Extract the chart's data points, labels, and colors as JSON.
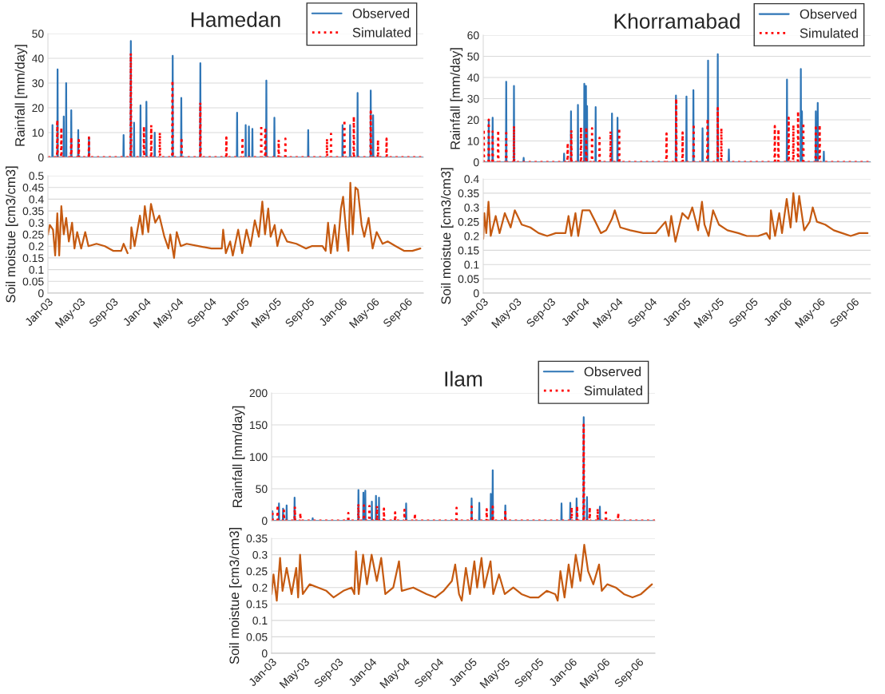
{
  "chart_data": [
    {
      "type": "line",
      "title": "Hamedan",
      "ylabel": "Rainfall [mm/day]",
      "xlim": [
        "2003-01-01",
        "2006-10-31"
      ],
      "ylim": [
        0,
        50
      ],
      "yticks": [
        0,
        10,
        20,
        30,
        40,
        50
      ],
      "grid": "y",
      "legend": "top right",
      "tick_labels": "y",
      "series": [
        {
          "name": "Observed",
          "color": "#2e75b6",
          "line_style": "solid",
          "x": [
            "2003-01-01",
            "2003-01-17",
            "2003-01-18",
            "2003-01-19",
            "2003-02-05",
            "2003-02-06",
            "2003-02-07",
            "2003-02-28",
            "2003-03-01",
            "2003-03-02",
            "2003-03-09",
            "2003-03-10",
            "2003-03-11",
            "2003-03-28",
            "2003-03-29",
            "2003-03-30",
            "2003-04-23",
            "2003-04-24",
            "2003-04-25",
            "2003-06-02",
            "2003-06-03",
            "2003-06-04",
            "2003-10-09",
            "2003-10-10",
            "2003-10-11",
            "2003-11-05",
            "2003-11-06",
            "2003-11-07",
            "2003-11-17",
            "2003-11-18",
            "2003-11-19",
            "2003-12-11",
            "2003-12-12",
            "2003-12-13",
            "2004-01-02",
            "2004-01-03",
            "2004-01-04",
            "2004-02-02",
            "2004-02-03",
            "2004-02-04",
            "2004-04-09",
            "2004-04-10",
            "2004-04-11",
            "2004-05-11",
            "2004-05-12",
            "2004-05-13",
            "2004-07-21",
            "2004-07-22",
            "2004-07-23",
            "2004-12-05",
            "2004-12-06",
            "2004-12-07",
            "2005-01-06",
            "2005-01-07",
            "2005-01-08",
            "2005-01-18",
            "2005-01-19",
            "2005-01-20",
            "2005-01-31",
            "2005-02-01",
            "2005-02-02",
            "2005-03-24",
            "2005-03-25",
            "2005-03-26",
            "2005-04-23",
            "2005-04-24",
            "2005-04-25",
            "2005-08-27",
            "2005-08-28",
            "2005-08-29",
            "2006-01-02",
            "2006-01-03",
            "2006-01-04",
            "2006-01-30",
            "2006-01-31",
            "2006-02-01",
            "2006-02-27",
            "2006-02-28",
            "2006-03-01",
            "2006-04-17",
            "2006-04-18",
            "2006-04-19",
            "2006-04-26",
            "2006-04-27",
            "2006-04-28",
            "2006-10-31"
          ],
          "values": [
            0,
            0,
            13,
            0,
            0,
            35.5,
            0,
            0,
            16.5,
            0,
            0,
            30,
            0,
            0,
            19,
            0,
            0,
            11,
            0,
            0,
            8,
            0,
            0,
            9,
            0,
            0,
            47,
            0,
            0,
            14,
            0,
            0,
            21,
            0,
            0,
            22.5,
            0,
            0,
            10,
            0,
            0,
            41,
            0,
            0,
            24,
            0,
            0,
            38,
            0,
            0,
            18,
            0,
            0,
            13,
            0,
            0,
            12.5,
            0,
            0,
            11.5,
            0,
            0,
            31,
            0,
            0,
            16,
            0,
            0,
            11,
            0,
            0,
            13,
            0,
            0,
            13,
            0,
            0,
            26,
            0,
            0,
            27,
            0,
            0,
            17,
            0,
            0
          ]
        },
        {
          "name": "Simulated",
          "color": "#ff0000",
          "line_style": "dotted",
          "x": [
            "2003-01-01",
            "2003-02-04",
            "2003-02-05",
            "2003-02-06",
            "2003-02-19",
            "2003-02-20",
            "2003-02-21",
            "2003-03-28",
            "2003-03-29",
            "2003-03-30",
            "2003-04-25",
            "2003-04-26",
            "2003-04-27",
            "2003-06-02",
            "2003-06-03",
            "2003-06-04",
            "2003-11-05",
            "2003-11-06",
            "2003-11-07",
            "2003-12-24",
            "2003-12-25",
            "2003-12-26",
            "2004-01-20",
            "2004-01-21",
            "2004-01-22",
            "2004-02-21",
            "2004-02-22",
            "2004-02-23",
            "2004-04-08",
            "2004-04-09",
            "2004-04-10",
            "2004-05-12",
            "2004-05-13",
            "2004-05-14",
            "2004-07-21",
            "2004-07-22",
            "2004-07-23",
            "2004-10-26",
            "2004-10-27",
            "2004-10-28",
            "2004-12-25",
            "2004-12-26",
            "2004-12-27",
            "2005-03-05",
            "2005-03-06",
            "2005-03-07",
            "2005-03-20",
            "2005-03-21",
            "2005-03-22",
            "2005-05-09",
            "2005-05-10",
            "2005-05-11",
            "2005-06-03",
            "2005-06-04",
            "2005-06-05",
            "2005-11-05",
            "2005-11-06",
            "2005-11-07",
            "2005-11-20",
            "2005-11-21",
            "2005-11-22",
            "2006-01-09",
            "2006-01-10",
            "2006-01-11",
            "2006-02-13",
            "2006-02-14",
            "2006-02-15",
            "2006-04-17",
            "2006-04-18",
            "2006-04-19",
            "2006-05-14",
            "2006-05-15",
            "2006-05-16",
            "2006-06-15",
            "2006-06-16",
            "2006-06-17",
            "2006-10-31"
          ],
          "values": [
            0,
            0,
            15,
            0,
            0,
            12,
            0,
            0,
            8,
            0,
            0,
            7,
            0,
            0,
            8,
            0,
            0,
            42,
            0,
            0,
            12.5,
            0,
            0,
            13,
            0,
            0,
            10,
            0,
            0,
            31,
            0,
            0,
            8,
            0,
            0,
            22,
            0,
            0,
            8,
            0,
            0,
            8,
            0,
            0,
            13,
            0,
            0,
            12,
            0,
            0,
            7,
            0,
            0,
            7.5,
            0,
            0,
            7.5,
            0,
            0,
            9.5,
            0,
            0,
            15,
            0,
            0,
            16.5,
            0,
            0,
            18.5,
            0,
            0,
            7,
            0,
            0,
            7.5,
            0,
            0
          ]
        }
      ]
    },
    {
      "type": "line",
      "ylabel": "Soil moistue [cm3/cm3]",
      "xlim": [
        "2003-01-01",
        "2006-10-31"
      ],
      "xticks": [
        {
          "value": "2003-01-01",
          "label": "Jan-03"
        },
        {
          "value": "2003-05-01",
          "label": "May-03"
        },
        {
          "value": "2003-09-01",
          "label": "Sep-03"
        },
        {
          "value": "2004-01-01",
          "label": "Jan-04"
        },
        {
          "value": "2004-05-01",
          "label": "May-04"
        },
        {
          "value": "2004-09-01",
          "label": "Sep-04"
        },
        {
          "value": "2005-01-01",
          "label": "Jan-05"
        },
        {
          "value": "2005-05-01",
          "label": "May-05"
        },
        {
          "value": "2005-09-01",
          "label": "Sep-05"
        },
        {
          "value": "2006-01-01",
          "label": "Jan-06"
        },
        {
          "value": "2006-05-01",
          "label": "May-06"
        },
        {
          "value": "2006-09-01",
          "label": "Sep-06"
        }
      ],
      "ylim": [
        0,
        0.5
      ],
      "yticks": [
        0,
        0.05,
        0.1,
        0.15,
        0.2,
        0.25,
        0.3,
        0.35,
        0.4,
        0.45,
        0.5
      ],
      "grid": "y",
      "series": [
        {
          "color": "#c55a11",
          "line_style": "solid",
          "x": [
            "2003-01-01",
            "2003-01-08",
            "2003-01-20",
            "2003-01-28",
            "2003-02-05",
            "2003-02-12",
            "2003-02-20",
            "2003-03-01",
            "2003-03-10",
            "2003-03-20",
            "2003-04-01",
            "2003-04-10",
            "2003-04-20",
            "2003-05-05",
            "2003-05-20",
            "2003-06-01",
            "2003-07-01",
            "2003-08-01",
            "2003-09-01",
            "2003-10-01",
            "2003-10-10",
            "2003-10-25",
            "2003-11-01",
            "2003-11-05",
            "2003-11-08",
            "2003-11-20",
            "2003-12-10",
            "2003-12-20",
            "2003-12-28",
            "2004-01-10",
            "2004-01-20",
            "2004-02-05",
            "2004-02-20",
            "2004-03-10",
            "2004-03-25",
            "2004-04-01",
            "2004-04-15",
            "2004-04-25",
            "2004-05-10",
            "2004-06-01",
            "2004-07-15",
            "2004-09-01",
            "2004-10-10",
            "2004-10-15",
            "2004-10-25",
            "2004-11-10",
            "2004-11-20",
            "2004-12-10",
            "2004-12-25",
            "2005-01-10",
            "2005-01-25",
            "2005-02-10",
            "2005-02-25",
            "2005-03-10",
            "2005-03-20",
            "2005-04-01",
            "2005-04-10",
            "2005-04-25",
            "2005-05-05",
            "2005-05-20",
            "2005-06-10",
            "2005-07-15",
            "2005-08-20",
            "2005-09-10",
            "2005-10-20",
            "2005-11-01",
            "2005-11-10",
            "2005-11-20",
            "2005-12-05",
            "2005-12-15",
            "2005-12-28",
            "2006-01-05",
            "2006-01-15",
            "2006-01-25",
            "2006-02-01",
            "2006-02-10",
            "2006-02-20",
            "2006-03-01",
            "2006-03-15",
            "2006-03-25",
            "2006-04-10",
            "2006-04-25",
            "2006-05-10",
            "2006-06-01",
            "2006-06-20",
            "2006-07-20",
            "2006-08-20",
            "2006-09-20",
            "2006-10-20"
          ],
          "values": [
            0.25,
            0.29,
            0.27,
            0.16,
            0.34,
            0.16,
            0.37,
            0.25,
            0.32,
            0.22,
            0.3,
            0.19,
            0.26,
            0.19,
            0.26,
            0.2,
            0.21,
            0.2,
            0.18,
            0.18,
            0.21,
            0.17,
            null,
            0.19,
            0.28,
            0.2,
            0.33,
            0.25,
            0.37,
            0.26,
            0.38,
            0.3,
            0.33,
            0.24,
            0.19,
            0.25,
            0.15,
            0.26,
            0.2,
            0.21,
            0.2,
            0.19,
            0.19,
            0.27,
            0.17,
            0.22,
            0.16,
            0.27,
            0.17,
            0.27,
            0.2,
            0.31,
            0.24,
            0.39,
            0.25,
            0.36,
            0.24,
            0.29,
            0.2,
            0.27,
            0.22,
            0.21,
            0.19,
            0.2,
            0.2,
            0.18,
            0.3,
            0.17,
            0.29,
            0.18,
            0.36,
            0.41,
            0.28,
            0.18,
            0.47,
            0.25,
            0.45,
            0.44,
            0.29,
            0.24,
            0.32,
            0.19,
            0.26,
            0.21,
            0.22,
            0.2,
            0.18,
            0.18,
            0.19
          ]
        }
      ]
    },
    {
      "type": "line",
      "title": "Khorramabad",
      "ylabel": "Rainfall [mm/day]",
      "xlim": [
        "2003-01-01",
        "2006-10-31"
      ],
      "ylim": [
        0,
        60
      ],
      "yticks": [
        0,
        10,
        20,
        30,
        40,
        50,
        60
      ],
      "grid": "y",
      "legend": "top right",
      "tick_labels": "y",
      "series": [
        {
          "name": "Observed",
          "color": "#2e75b6",
          "line_style": "solid",
          "x": [
            "2003-01-01",
            "2003-01-20",
            "2003-01-21",
            "2003-01-22",
            "2003-02-03",
            "2003-02-04",
            "2003-02-05",
            "2003-03-24",
            "2003-03-25",
            "2003-03-26",
            "2003-04-21",
            "2003-04-22",
            "2003-04-23",
            "2003-05-26",
            "2003-05-27",
            "2003-05-28",
            "2003-10-19",
            "2003-10-20",
            "2003-10-21",
            "2003-11-13",
            "2003-11-14",
            "2003-11-15",
            "2003-12-08",
            "2003-12-09",
            "2003-12-10",
            "2003-12-31",
            "2004-01-01",
            "2004-01-02",
            "2004-01-06",
            "2004-01-07",
            "2004-01-08",
            "2004-01-10",
            "2004-01-11",
            "2004-01-12",
            "2004-02-10",
            "2004-02-11",
            "2004-02-12",
            "2004-04-09",
            "2004-04-10",
            "2004-04-11",
            "2004-04-29",
            "2004-04-30",
            "2004-05-01",
            "2004-11-26",
            "2004-11-27",
            "2004-11-28",
            "2005-01-03",
            "2005-01-04",
            "2005-01-05",
            "2005-01-28",
            "2005-01-29",
            "2005-01-30",
            "2005-03-02",
            "2005-03-03",
            "2005-03-04",
            "2005-03-22",
            "2005-03-23",
            "2005-03-24",
            "2005-04-26",
            "2005-04-27",
            "2005-04-28",
            "2005-06-05",
            "2005-06-06",
            "2005-06-07",
            "2006-01-01",
            "2006-01-02",
            "2006-01-03",
            "2006-02-20",
            "2006-02-21",
            "2006-02-22",
            "2006-02-24",
            "2006-02-25",
            "2006-02-26",
            "2006-04-15",
            "2006-04-16",
            "2006-04-17",
            "2006-04-22",
            "2006-04-23",
            "2006-04-24",
            "2006-05-14",
            "2006-05-15",
            "2006-05-16",
            "2006-10-31"
          ],
          "values": [
            0,
            0,
            20,
            0,
            0,
            21,
            0,
            0,
            38,
            0,
            0,
            36,
            0,
            0,
            2,
            0,
            0,
            4,
            0,
            0,
            24,
            0,
            0,
            27,
            0,
            0,
            37,
            0,
            0,
            36,
            0,
            0,
            26.5,
            0,
            0,
            26,
            0,
            0,
            23,
            0,
            0,
            21,
            0,
            0,
            31.5,
            0,
            0,
            31,
            0,
            0,
            34,
            0,
            0,
            16,
            0,
            0,
            48,
            0,
            0,
            51,
            0,
            0,
            6,
            0,
            0,
            39,
            0,
            0,
            44,
            0,
            0,
            24,
            0,
            0,
            24,
            0,
            0,
            28,
            0,
            0,
            5,
            0,
            0
          ]
        },
        {
          "name": "Simulated",
          "color": "#ff0000",
          "line_style": "dotted",
          "x": [
            "2003-01-01",
            "2003-01-02",
            "2003-01-03",
            "2003-01-04",
            "2003-01-20",
            "2003-01-21",
            "2003-01-22",
            "2003-02-03",
            "2003-02-04",
            "2003-02-05",
            "2003-02-23",
            "2003-02-24",
            "2003-02-25",
            "2003-03-24",
            "2003-03-25",
            "2003-03-26",
            "2003-04-21",
            "2003-04-22",
            "2003-04-23",
            "2003-11-01",
            "2003-11-02",
            "2003-11-03",
            "2003-11-14",
            "2003-11-15",
            "2003-11-16",
            "2003-12-19",
            "2003-12-20",
            "2003-12-21",
            "2004-01-07",
            "2004-01-08",
            "2004-01-09",
            "2004-01-28",
            "2004-01-29",
            "2004-01-30",
            "2004-02-24",
            "2004-02-25",
            "2004-02-26",
            "2004-04-04",
            "2004-04-05",
            "2004-04-06",
            "2004-05-05",
            "2004-05-06",
            "2004-05-07",
            "2004-10-23",
            "2004-10-24",
            "2004-10-25",
            "2004-11-27",
            "2004-11-28",
            "2004-11-29",
            "2004-12-20",
            "2004-12-21",
            "2004-12-22",
            "2005-01-29",
            "2005-01-30",
            "2005-01-31",
            "2005-03-20",
            "2005-03-21",
            "2005-03-22",
            "2005-04-26",
            "2005-04-27",
            "2005-04-28",
            "2005-05-09",
            "2005-05-10",
            "2005-05-11",
            "2005-11-18",
            "2005-11-19",
            "2005-11-20",
            "2005-12-01",
            "2005-12-02",
            "2005-12-03",
            "2006-01-07",
            "2006-01-08",
            "2006-01-09",
            "2006-01-24",
            "2006-01-25",
            "2006-01-26",
            "2006-02-10",
            "2006-02-11",
            "2006-02-12",
            "2006-03-01",
            "2006-03-02",
            "2006-03-03",
            "2006-04-15",
            "2006-04-16",
            "2006-04-17",
            "2006-04-29",
            "2006-04-30",
            "2006-05-01",
            "2006-10-31"
          ],
          "values": [
            0,
            0,
            15.5,
            0,
            0,
            20,
            0,
            0,
            14.5,
            0,
            0,
            15,
            0,
            0,
            15,
            0,
            0,
            17,
            0,
            0,
            9,
            0,
            0,
            15,
            0,
            0,
            16.5,
            0,
            0,
            16.5,
            0,
            0,
            16,
            0,
            0,
            11.5,
            0,
            0,
            14.5,
            0,
            0,
            16,
            0,
            0,
            13.5,
            0,
            0,
            30,
            0,
            0,
            14,
            0,
            0,
            18,
            0,
            0,
            20.5,
            0,
            0,
            25.5,
            0,
            0,
            16,
            0,
            0,
            17,
            0,
            0,
            15.5,
            0,
            0,
            21,
            0,
            0,
            17.5,
            0,
            0,
            24,
            0,
            0,
            18.5,
            0,
            0,
            17.5,
            0,
            0,
            17.5,
            0,
            0
          ]
        }
      ]
    },
    {
      "type": "line",
      "ylabel": "Soil moistue [cm3/cm3]",
      "xlim": [
        "2003-01-01",
        "2006-10-31"
      ],
      "xticks": [
        {
          "value": "2003-01-01",
          "label": "Jan-03"
        },
        {
          "value": "2003-05-01",
          "label": "May-03"
        },
        {
          "value": "2003-09-01",
          "label": "Sep-03"
        },
        {
          "value": "2004-01-01",
          "label": "Jan-04"
        },
        {
          "value": "2004-05-01",
          "label": "May-04"
        },
        {
          "value": "2004-09-01",
          "label": "Sep-04"
        },
        {
          "value": "2005-01-01",
          "label": "Jan-05"
        },
        {
          "value": "2005-05-01",
          "label": "May-05"
        },
        {
          "value": "2005-09-01",
          "label": "Sep-05"
        },
        {
          "value": "2006-01-01",
          "label": "Jan-06"
        },
        {
          "value": "2006-05-01",
          "label": "May-06"
        },
        {
          "value": "2006-09-01",
          "label": "Sep-06"
        }
      ],
      "ylim": [
        0,
        0.4
      ],
      "yticks": [
        0,
        0.05,
        0.1,
        0.15,
        0.2,
        0.25,
        0.3,
        0.35,
        0.4
      ],
      "grid": "y",
      "series": [
        {
          "color": "#c55a11",
          "line_style": "solid",
          "x": [
            "2003-01-01",
            "2003-01-05",
            "2003-01-12",
            "2003-01-20",
            "2003-01-28",
            "2003-02-15",
            "2003-03-01",
            "2003-03-20",
            "2003-04-10",
            "2003-04-25",
            "2003-05-20",
            "2003-06-20",
            "2003-07-20",
            "2003-08-20",
            "2003-09-20",
            "2003-10-25",
            "2003-11-05",
            "2003-11-15",
            "2003-11-30",
            "2003-12-10",
            "2003-12-25",
            "2004-01-20",
            "2004-02-10",
            "2004-03-01",
            "2004-03-20",
            "2004-04-10",
            "2004-04-20",
            "2004-05-10",
            "2004-06-15",
            "2004-08-01",
            "2004-09-15",
            "2004-10-20",
            "2004-11-01",
            "2004-11-10",
            "2004-11-25",
            "2004-12-20",
            "2005-01-10",
            "2005-01-25",
            "2005-02-15",
            "2005-03-01",
            "2005-03-10",
            "2005-03-25",
            "2005-04-10",
            "2005-05-01",
            "2005-06-01",
            "2005-07-10",
            "2005-08-10",
            "2005-09-20",
            "2005-10-20",
            "2005-11-01",
            "2005-11-05",
            "2005-11-20",
            "2005-12-05",
            "2005-12-15",
            "2006-01-01",
            "2006-01-15",
            "2006-01-25",
            "2006-02-05",
            "2006-02-15",
            "2006-03-05",
            "2006-03-25",
            "2006-04-05",
            "2006-04-20",
            "2006-05-20",
            "2006-06-20",
            "2006-07-20",
            "2006-08-20",
            "2006-09-20",
            "2006-10-20"
          ],
          "values": [
            0.19,
            0.28,
            0.21,
            0.32,
            0.2,
            0.27,
            0.21,
            0.28,
            0.23,
            0.29,
            0.24,
            0.23,
            0.21,
            0.2,
            0.21,
            0.21,
            0.27,
            0.2,
            0.28,
            0.2,
            0.29,
            0.29,
            0.25,
            0.21,
            0.22,
            0.26,
            0.29,
            0.23,
            0.22,
            0.21,
            0.21,
            0.25,
            0.2,
            0.27,
            0.18,
            0.28,
            0.26,
            0.3,
            0.22,
            0.32,
            0.24,
            0.2,
            0.29,
            0.24,
            0.22,
            0.21,
            0.2,
            0.2,
            0.21,
            0.19,
            0.29,
            0.2,
            0.28,
            0.21,
            0.33,
            0.23,
            0.35,
            0.25,
            0.34,
            0.22,
            0.25,
            0.3,
            0.25,
            0.24,
            0.22,
            0.21,
            0.2,
            0.21,
            0.21
          ]
        }
      ]
    },
    {
      "type": "line",
      "title": "Ilam",
      "ylabel": "Rainfall [mm/day]",
      "xlim": [
        "2003-01-01",
        "2006-10-31"
      ],
      "ylim": [
        0,
        200
      ],
      "yticks": [
        0,
        50,
        100,
        150,
        200
      ],
      "grid": "y",
      "legend": "top right",
      "tick_labels": "y",
      "series": [
        {
          "name": "Observed",
          "color": "#2e75b6",
          "line_style": "solid",
          "x": [
            "2003-01-01",
            "2003-01-03",
            "2003-01-04",
            "2003-01-05",
            "2003-01-27",
            "2003-01-28",
            "2003-01-29",
            "2003-02-11",
            "2003-02-12",
            "2003-02-13",
            "2003-02-24",
            "2003-02-25",
            "2003-02-26",
            "2003-03-25",
            "2003-03-26",
            "2003-03-27",
            "2003-05-30",
            "2003-05-31",
            "2003-06-01",
            "2003-11-13",
            "2003-11-14",
            "2003-11-15",
            "2003-12-01",
            "2003-12-02",
            "2003-12-03",
            "2003-12-08",
            "2003-12-09",
            "2003-12-10",
            "2004-01-01",
            "2004-01-02",
            "2004-01-03",
            "2004-01-16",
            "2004-01-17",
            "2004-01-18",
            "2004-01-27",
            "2004-01-28",
            "2004-01-29",
            "2004-05-05",
            "2004-05-06",
            "2004-05-07",
            "2004-12-30",
            "2004-12-31",
            "2005-01-01",
            "2005-01-27",
            "2005-01-28",
            "2005-01-29",
            "2005-03-10",
            "2005-03-11",
            "2005-03-12",
            "2005-03-17",
            "2005-03-18",
            "2005-03-19",
            "2005-05-02",
            "2005-05-03",
            "2005-05-04",
            "2005-11-23",
            "2005-11-24",
            "2005-11-25",
            "2005-12-25",
            "2005-12-26",
            "2005-12-27",
            "2006-01-17",
            "2006-01-18",
            "2006-01-19",
            "2006-02-12",
            "2006-02-13",
            "2006-02-14",
            "2006-02-24",
            "2006-02-25",
            "2006-02-26",
            "2006-04-12",
            "2006-04-13",
            "2006-04-14",
            "2006-10-31"
          ],
          "values": [
            0,
            0,
            15,
            0,
            0,
            27,
            0,
            0,
            19,
            0,
            0,
            24,
            0,
            0,
            36,
            0,
            0,
            4,
            0,
            0,
            48,
            0,
            0,
            44,
            0,
            0,
            47,
            0,
            0,
            30,
            0,
            0,
            39,
            0,
            0,
            36,
            0,
            0,
            27,
            0,
            0,
            35,
            0,
            0,
            28,
            0,
            0,
            42,
            0,
            0,
            79,
            0,
            0,
            24,
            0,
            0,
            27,
            0,
            0,
            28,
            0,
            0,
            35,
            0,
            0,
            162,
            0,
            0,
            37,
            0,
            0,
            22,
            0,
            0
          ]
        },
        {
          "name": "Simulated",
          "color": "#ff0000",
          "line_style": "dotted",
          "x": [
            "2003-01-01",
            "2003-01-03",
            "2003-01-04",
            "2003-01-05",
            "2003-01-22",
            "2003-01-23",
            "2003-01-24",
            "2003-02-14",
            "2003-02-15",
            "2003-02-16",
            "2003-03-26",
            "2003-03-27",
            "2003-03-28",
            "2003-04-15",
            "2003-04-16",
            "2003-04-17",
            "2003-10-07",
            "2003-10-08",
            "2003-10-09",
            "2003-11-13",
            "2003-11-14",
            "2003-11-15",
            "2003-12-03",
            "2003-12-04",
            "2003-12-05",
            "2003-12-23",
            "2003-12-24",
            "2003-12-25",
            "2004-01-20",
            "2004-01-21",
            "2004-01-22",
            "2004-02-14",
            "2004-02-15",
            "2004-02-16",
            "2004-03-26",
            "2004-03-27",
            "2004-03-28",
            "2004-04-29",
            "2004-04-30",
            "2004-05-01",
            "2004-06-06",
            "2004-06-07",
            "2004-06-08",
            "2004-11-05",
            "2004-11-06",
            "2004-11-07",
            "2004-12-30",
            "2004-12-31",
            "2005-01-01",
            "2005-02-23",
            "2005-02-24",
            "2005-02-25",
            "2005-03-17",
            "2005-03-18",
            "2005-03-19",
            "2005-05-02",
            "2005-05-03",
            "2005-05-04",
            "2005-12-30",
            "2005-12-31",
            "2006-01-01",
            "2006-01-19",
            "2006-01-20",
            "2006-01-21",
            "2006-02-12",
            "2006-02-13",
            "2006-02-14",
            "2006-03-06",
            "2006-03-07",
            "2006-03-08",
            "2006-04-04",
            "2006-04-05",
            "2006-04-06",
            "2006-05-04",
            "2006-05-05",
            "2006-05-06",
            "2006-06-18",
            "2006-06-19",
            "2006-06-20",
            "2006-10-31"
          ],
          "values": [
            0,
            0,
            15,
            0,
            0,
            24,
            0,
            0,
            16,
            0,
            0,
            22,
            0,
            0,
            12,
            0,
            0,
            12,
            0,
            0,
            26,
            0,
            0,
            24,
            0,
            0,
            23,
            0,
            0,
            23,
            0,
            0,
            19,
            0,
            0,
            13,
            0,
            0,
            17,
            0,
            0,
            11,
            0,
            0,
            20,
            0,
            0,
            22,
            0,
            0,
            18,
            0,
            0,
            22,
            0,
            0,
            17,
            0,
            0,
            21,
            0,
            0,
            23,
            0,
            0,
            150,
            0,
            0,
            21,
            0,
            0,
            19,
            0,
            0,
            17,
            0,
            0,
            12,
            0,
            0
          ]
        }
      ]
    },
    {
      "type": "line",
      "ylabel": "Soil moistue [cm3/cm3]",
      "xlim": [
        "2003-01-01",
        "2006-10-31"
      ],
      "xticks": [
        {
          "value": "2003-01-01",
          "label": "Jan-03"
        },
        {
          "value": "2003-05-01",
          "label": "May-03"
        },
        {
          "value": "2003-09-01",
          "label": "Sep-03"
        },
        {
          "value": "2004-01-01",
          "label": "Jan-04"
        },
        {
          "value": "2004-05-01",
          "label": "May-04"
        },
        {
          "value": "2004-09-01",
          "label": "Sep-04"
        },
        {
          "value": "2005-01-01",
          "label": "Jan-05"
        },
        {
          "value": "2005-05-01",
          "label": "May-05"
        },
        {
          "value": "2005-09-01",
          "label": "Sep-05"
        },
        {
          "value": "2006-01-01",
          "label": "Jan-06"
        },
        {
          "value": "2006-05-01",
          "label": "May-06"
        },
        {
          "value": "2006-09-01",
          "label": "Sep-06"
        }
      ],
      "ylim": [
        0,
        0.35
      ],
      "yticks": [
        0,
        0.05,
        0.1,
        0.15,
        0.2,
        0.25,
        0.3,
        0.35
      ],
      "grid": "y",
      "series": [
        {
          "color": "#c55a11",
          "line_style": "solid",
          "x": [
            "2003-01-01",
            "2003-01-08",
            "2003-01-20",
            "2003-02-01",
            "2003-02-10",
            "2003-02-25",
            "2003-03-15",
            "2003-04-01",
            "2003-04-08",
            "2003-04-15",
            "2003-04-25",
            "2003-05-20",
            "2003-06-20",
            "2003-07-20",
            "2003-08-15",
            "2003-09-20",
            "2003-10-20",
            "2003-10-30",
            "2003-11-05",
            "2003-11-15",
            "2003-12-01",
            "2003-12-15",
            "2004-01-01",
            "2004-01-20",
            "2004-02-05",
            "2004-02-20",
            "2004-03-20",
            "2004-04-10",
            "2004-04-20",
            "2004-06-01",
            "2004-07-20",
            "2004-08-20",
            "2004-09-20",
            "2004-10-20",
            "2004-11-01",
            "2004-11-15",
            "2004-11-25",
            "2004-12-10",
            "2004-12-25",
            "2005-01-10",
            "2005-01-20",
            "2005-02-05",
            "2005-02-15",
            "2005-03-10",
            "2005-03-20",
            "2005-04-10",
            "2005-05-01",
            "2005-06-01",
            "2005-07-01",
            "2005-08-01",
            "2005-09-01",
            "2005-10-01",
            "2005-11-01",
            "2005-11-10",
            "2005-11-20",
            "2005-12-05",
            "2005-12-20",
            "2006-01-01",
            "2006-01-15",
            "2006-02-01",
            "2006-02-15",
            "2006-03-01",
            "2006-03-20",
            "2006-04-10",
            "2006-04-20",
            "2006-05-10",
            "2006-06-10",
            "2006-07-10",
            "2006-08-10",
            "2006-09-10",
            "2006-10-20"
          ],
          "values": [
            0.18,
            0.24,
            0.16,
            0.29,
            0.19,
            0.26,
            0.18,
            0.26,
            0.17,
            0.3,
            0.18,
            0.21,
            0.2,
            0.19,
            0.17,
            0.19,
            0.2,
            0.18,
            0.31,
            0.18,
            0.3,
            0.21,
            0.3,
            0.22,
            0.29,
            0.18,
            0.2,
            0.28,
            0.19,
            0.2,
            0.18,
            0.17,
            0.19,
            0.22,
            0.27,
            0.18,
            0.16,
            0.26,
            0.18,
            0.28,
            0.2,
            0.29,
            0.2,
            0.28,
            0.18,
            0.24,
            0.18,
            0.2,
            0.18,
            0.17,
            0.17,
            0.19,
            0.18,
            0.16,
            0.25,
            0.17,
            0.27,
            0.2,
            0.3,
            0.22,
            0.33,
            0.25,
            0.21,
            0.27,
            0.19,
            0.21,
            0.2,
            0.18,
            0.17,
            0.18,
            0.21
          ]
        }
      ]
    }
  ]
}
